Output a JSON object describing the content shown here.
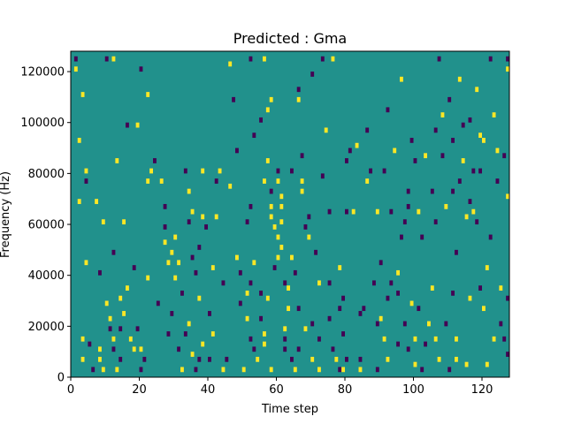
{
  "chart_data": {
    "type": "heatmap",
    "title": "Predicted : Gma",
    "xlabel": "Time step",
    "ylabel": "Frequency (Hz)",
    "xlim": [
      0,
      128
    ],
    "ylim": [
      0,
      128000
    ],
    "xticks": [
      0,
      20,
      40,
      60,
      80,
      100,
      120
    ],
    "yticks": [
      0,
      20000,
      40000,
      60000,
      80000,
      100000,
      120000
    ],
    "colormap": "viridis",
    "value_levels": {
      "low": -1,
      "mid": 0,
      "high": 1
    },
    "colors": {
      "low": "#440154",
      "mid": "#21918c",
      "high": "#fde725"
    },
    "grid": false,
    "cells": [
      [
        1,
        124000,
        -1
      ],
      [
        1,
        120000,
        1
      ],
      [
        3,
        110000,
        1
      ],
      [
        2,
        92000,
        1
      ],
      [
        4,
        80000,
        1
      ],
      [
        4,
        76000,
        -1
      ],
      [
        2,
        68000,
        1
      ],
      [
        7,
        68000,
        1
      ],
      [
        9,
        60000,
        1
      ],
      [
        4,
        44000,
        1
      ],
      [
        3,
        14000,
        1
      ],
      [
        3,
        6000,
        1
      ],
      [
        5,
        12000,
        -1
      ],
      [
        6,
        2000,
        -1
      ],
      [
        8,
        6000,
        1
      ],
      [
        8,
        10000,
        1
      ],
      [
        9,
        2000,
        1
      ],
      [
        10,
        28000,
        1
      ],
      [
        11,
        18000,
        -1
      ],
      [
        11,
        22000,
        1
      ],
      [
        12,
        14000,
        1
      ],
      [
        12,
        10000,
        -1
      ],
      [
        13,
        2000,
        1
      ],
      [
        14,
        6000,
        -1
      ],
      [
        14,
        18000,
        -1
      ],
      [
        15,
        24000,
        1
      ],
      [
        14,
        30000,
        1
      ],
      [
        15,
        60000,
        1
      ],
      [
        13,
        84000,
        1
      ],
      [
        12,
        124000,
        1
      ],
      [
        10,
        124000,
        -1
      ],
      [
        16,
        98000,
        -1
      ],
      [
        17,
        14000,
        1
      ],
      [
        18,
        10000,
        1
      ],
      [
        19,
        18000,
        -1
      ],
      [
        20,
        2000,
        -1
      ],
      [
        20,
        10000,
        1
      ],
      [
        21,
        6000,
        -1
      ],
      [
        19,
        98000,
        1
      ],
      [
        20,
        120000,
        -1
      ],
      [
        22,
        76000,
        1
      ],
      [
        22,
        110000,
        1
      ],
      [
        24,
        84000,
        -1
      ],
      [
        26,
        76000,
        1
      ],
      [
        27,
        66000,
        -1
      ],
      [
        27,
        58000,
        -1
      ],
      [
        28,
        16000,
        -1
      ],
      [
        28,
        44000,
        1
      ],
      [
        29,
        48000,
        1
      ],
      [
        30,
        38000,
        1
      ],
      [
        31,
        10000,
        -1
      ],
      [
        32,
        2000,
        1
      ],
      [
        33,
        80000,
        -1
      ],
      [
        34,
        72000,
        1
      ],
      [
        34,
        60000,
        -1
      ],
      [
        35,
        64000,
        1
      ],
      [
        35,
        46000,
        -1
      ],
      [
        36,
        2000,
        -1
      ],
      [
        36,
        40000,
        -1
      ],
      [
        37,
        30000,
        1
      ],
      [
        37,
        6000,
        -1
      ],
      [
        38,
        62000,
        1
      ],
      [
        38,
        80000,
        1
      ],
      [
        39,
        58000,
        -1
      ],
      [
        40,
        6000,
        -1
      ],
      [
        40,
        24000,
        -1
      ],
      [
        41,
        16000,
        1
      ],
      [
        42,
        62000,
        1
      ],
      [
        42,
        76000,
        -1
      ],
      [
        43,
        80000,
        1
      ],
      [
        44,
        2000,
        1
      ],
      [
        44,
        36000,
        -1
      ],
      [
        45,
        6000,
        -1
      ],
      [
        46,
        122000,
        1
      ],
      [
        47,
        108000,
        -1
      ],
      [
        48,
        46000,
        1
      ],
      [
        49,
        40000,
        -1
      ],
      [
        49,
        28000,
        -1
      ],
      [
        50,
        2000,
        1
      ],
      [
        51,
        32000,
        1
      ],
      [
        51,
        60000,
        -1
      ],
      [
        51,
        22000,
        1
      ],
      [
        52,
        14000,
        -1
      ],
      [
        52,
        36000,
        -1
      ],
      [
        52,
        66000,
        -1
      ],
      [
        52,
        124000,
        -1
      ],
      [
        53,
        10000,
        -1
      ],
      [
        53,
        44000,
        1
      ],
      [
        54,
        6000,
        1
      ],
      [
        55,
        22000,
        -1
      ],
      [
        55,
        32000,
        -1
      ],
      [
        56,
        124000,
        1
      ],
      [
        56,
        76000,
        1
      ],
      [
        57,
        84000,
        1
      ],
      [
        58,
        108000,
        1
      ],
      [
        58,
        72000,
        -1
      ],
      [
        58,
        66000,
        1
      ],
      [
        58,
        62000,
        1
      ],
      [
        57,
        30000,
        1
      ],
      [
        56,
        16000,
        1
      ],
      [
        56,
        12000,
        1
      ],
      [
        58,
        2000,
        1
      ],
      [
        59,
        58000,
        1
      ],
      [
        59,
        42000,
        -1
      ],
      [
        60,
        76000,
        1
      ],
      [
        60,
        80000,
        -1
      ],
      [
        60,
        54000,
        1
      ],
      [
        60,
        46000,
        1
      ],
      [
        61,
        70000,
        1
      ],
      [
        61,
        66000,
        1
      ],
      [
        61,
        60000,
        1
      ],
      [
        61,
        50000,
        1
      ],
      [
        62,
        36000,
        -1
      ],
      [
        62,
        18000,
        1
      ],
      [
        62,
        14000,
        -1
      ],
      [
        62,
        10000,
        -1
      ],
      [
        63,
        34000,
        1
      ],
      [
        63,
        26000,
        1
      ],
      [
        64,
        6000,
        -1
      ],
      [
        64,
        80000,
        -1
      ],
      [
        64,
        46000,
        1
      ],
      [
        65,
        2000,
        1
      ],
      [
        65,
        40000,
        -1
      ],
      [
        66,
        26000,
        -1
      ],
      [
        66,
        10000,
        -1
      ],
      [
        66,
        108000,
        1
      ],
      [
        67,
        72000,
        1
      ],
      [
        67,
        86000,
        -1
      ],
      [
        67,
        76000,
        1
      ],
      [
        68,
        58000,
        -1
      ],
      [
        68,
        18000,
        1
      ],
      [
        69,
        62000,
        -1
      ],
      [
        69,
        54000,
        1
      ],
      [
        70,
        20000,
        -1
      ],
      [
        70,
        6000,
        1
      ],
      [
        71,
        48000,
        -1
      ],
      [
        72,
        36000,
        1
      ],
      [
        72,
        14000,
        -1
      ],
      [
        72,
        2000,
        1
      ],
      [
        73,
        124000,
        -1
      ],
      [
        73,
        78000,
        -1
      ],
      [
        75,
        36000,
        -1
      ],
      [
        75,
        64000,
        -1
      ],
      [
        75,
        22000,
        -1
      ],
      [
        76,
        124000,
        1
      ],
      [
        76,
        10000,
        -1
      ],
      [
        77,
        6000,
        1
      ],
      [
        78,
        42000,
        1
      ],
      [
        78,
        2000,
        -1
      ],
      [
        78,
        26000,
        -1
      ],
      [
        79,
        2000,
        1
      ],
      [
        79,
        16000,
        -1
      ],
      [
        79,
        30000,
        -1
      ],
      [
        80,
        6000,
        -1
      ],
      [
        80,
        64000,
        -1
      ],
      [
        80,
        84000,
        -1
      ],
      [
        81,
        88000,
        -1
      ],
      [
        82,
        64000,
        1
      ],
      [
        84,
        6000,
        -1
      ],
      [
        84,
        2000,
        1
      ],
      [
        84,
        24000,
        -1
      ],
      [
        85,
        26000,
        -1
      ],
      [
        86,
        76000,
        1
      ],
      [
        86,
        96000,
        -1
      ],
      [
        87,
        80000,
        -1
      ],
      [
        88,
        36000,
        -1
      ],
      [
        89,
        20000,
        -1
      ],
      [
        89,
        2000,
        -1
      ],
      [
        89,
        64000,
        1
      ],
      [
        90,
        22000,
        1
      ],
      [
        90,
        44000,
        -1
      ],
      [
        91,
        14000,
        1
      ],
      [
        91,
        80000,
        -1
      ],
      [
        92,
        30000,
        -1
      ],
      [
        92,
        6000,
        1
      ],
      [
        93,
        36000,
        -1
      ],
      [
        93,
        64000,
        -1
      ],
      [
        94,
        88000,
        1
      ],
      [
        95,
        12000,
        -1
      ],
      [
        95,
        32000,
        -1
      ],
      [
        95,
        40000,
        1
      ],
      [
        96,
        54000,
        -1
      ],
      [
        97,
        20000,
        -1
      ],
      [
        97,
        60000,
        -1
      ],
      [
        98,
        10000,
        -1
      ],
      [
        98,
        66000,
        -1
      ],
      [
        98,
        72000,
        -1
      ],
      [
        99,
        28000,
        1
      ],
      [
        100,
        4000,
        1
      ],
      [
        100,
        14000,
        1
      ],
      [
        100,
        84000,
        -1
      ],
      [
        101,
        26000,
        -1
      ],
      [
        101,
        64000,
        1
      ],
      [
        102,
        2000,
        -1
      ],
      [
        102,
        54000,
        -1
      ],
      [
        103,
        12000,
        -1
      ],
      [
        104,
        20000,
        1
      ],
      [
        105,
        72000,
        -1
      ],
      [
        105,
        34000,
        1
      ],
      [
        106,
        14000,
        1
      ],
      [
        106,
        60000,
        -1
      ],
      [
        107,
        6000,
        1
      ],
      [
        107,
        124000,
        -1
      ],
      [
        108,
        102000,
        1
      ],
      [
        108,
        86000,
        -1
      ],
      [
        109,
        66000,
        1
      ],
      [
        109,
        20000,
        -1
      ],
      [
        110,
        2000,
        -1
      ],
      [
        111,
        72000,
        -1
      ],
      [
        111,
        92000,
        -1
      ],
      [
        111,
        32000,
        -1
      ],
      [
        112,
        6000,
        1
      ],
      [
        112,
        14000,
        1
      ],
      [
        112,
        48000,
        -1
      ],
      [
        113,
        76000,
        -1
      ],
      [
        114,
        84000,
        1
      ],
      [
        114,
        98000,
        -1
      ],
      [
        115,
        62000,
        1
      ],
      [
        115,
        4000,
        1
      ],
      [
        116,
        30000,
        1
      ],
      [
        116,
        68000,
        -1
      ],
      [
        117,
        64000,
        1
      ],
      [
        117,
        80000,
        -1
      ],
      [
        118,
        112000,
        1
      ],
      [
        118,
        60000,
        -1
      ],
      [
        119,
        94000,
        1
      ],
      [
        119,
        80000,
        -1
      ],
      [
        119,
        34000,
        -1
      ],
      [
        120,
        26000,
        1
      ],
      [
        121,
        42000,
        1
      ],
      [
        121,
        4000,
        1
      ],
      [
        122,
        54000,
        -1
      ],
      [
        122,
        124000,
        -1
      ],
      [
        123,
        14000,
        1
      ],
      [
        123,
        102000,
        1
      ],
      [
        124,
        76000,
        -1
      ],
      [
        124,
        88000,
        1
      ],
      [
        125,
        20000,
        -1
      ],
      [
        125,
        34000,
        1
      ],
      [
        126,
        86000,
        -1
      ],
      [
        126,
        14000,
        -1
      ],
      [
        127,
        8000,
        -1
      ],
      [
        127,
        30000,
        -1
      ],
      [
        127,
        70000,
        1
      ],
      [
        127,
        124000,
        -1
      ],
      [
        127,
        120000,
        1
      ],
      [
        23,
        80000,
        1
      ],
      [
        30,
        54000,
        1
      ],
      [
        32,
        32000,
        -1
      ],
      [
        34,
        20000,
        1
      ],
      [
        38,
        12000,
        1
      ],
      [
        41,
        42000,
        1
      ],
      [
        46,
        74000,
        1
      ],
      [
        48,
        88000,
        -1
      ],
      [
        53,
        94000,
        -1
      ],
      [
        55,
        100000,
        -1
      ],
      [
        57,
        104000,
        1
      ],
      [
        66,
        112000,
        -1
      ],
      [
        70,
        118000,
        -1
      ],
      [
        74,
        96000,
        1
      ],
      [
        83,
        90000,
        1
      ],
      [
        92,
        104000,
        -1
      ],
      [
        96,
        116000,
        1
      ],
      [
        99,
        92000,
        -1
      ],
      [
        103,
        86000,
        1
      ],
      [
        106,
        96000,
        -1
      ],
      [
        110,
        108000,
        -1
      ],
      [
        113,
        116000,
        1
      ],
      [
        116,
        100000,
        -1
      ],
      [
        120,
        92000,
        1
      ],
      [
        8,
        40000,
        -1
      ],
      [
        12,
        48000,
        -1
      ],
      [
        16,
        34000,
        1
      ],
      [
        18,
        42000,
        -1
      ],
      [
        22,
        38000,
        1
      ],
      [
        25,
        28000,
        -1
      ],
      [
        27,
        52000,
        1
      ],
      [
        29,
        24000,
        -1
      ],
      [
        31,
        44000,
        1
      ],
      [
        33,
        16000,
        -1
      ],
      [
        35,
        8000,
        1
      ],
      [
        37,
        50000,
        -1
      ]
    ]
  }
}
